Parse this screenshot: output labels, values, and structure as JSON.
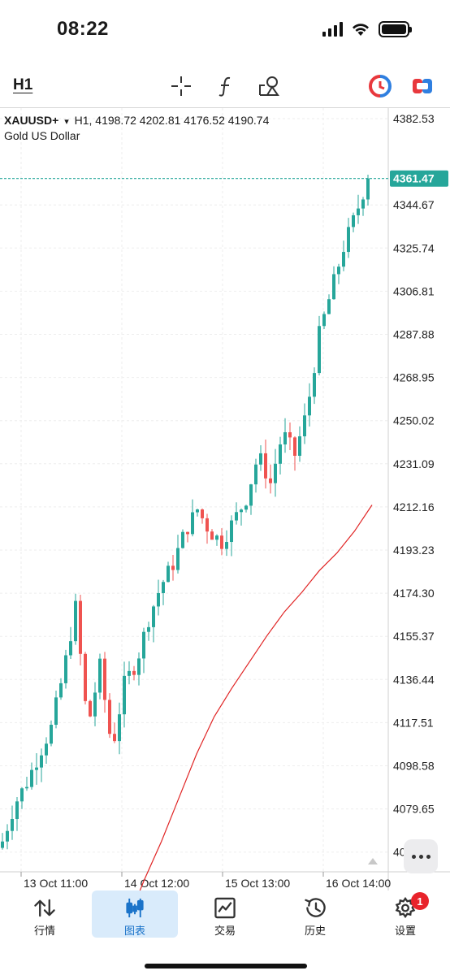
{
  "status_bar": {
    "time": "08:22"
  },
  "toolbar": {
    "timeframe": "H1",
    "icons": [
      "crosshair-icon",
      "indicator-icon",
      "objects-icon",
      "one-click-trading-icon",
      "account-switch-icon"
    ]
  },
  "chart": {
    "symbol": "XAUUSD+",
    "dropdown_glyph": "▾",
    "ohlc_line": "H1, 4198.72 4202.81 4176.52 4190.74",
    "description": "Gold US Dollar",
    "current_price": "4361.47",
    "price_axis": [
      "4382.53",
      "4344.67",
      "4325.74",
      "4306.81",
      "4287.88",
      "4268.95",
      "4250.02",
      "4231.09",
      "4212.16",
      "4193.23",
      "4174.30",
      "4155.37",
      "4136.44",
      "4117.51",
      "4098.58",
      "4079.65",
      "4060.72"
    ],
    "time_axis": [
      "13 Oct 11:00",
      "14 Oct 12:00",
      "15 Oct 13:00",
      "16 Oct 14:00"
    ],
    "colors": {
      "bull": "#26a69a",
      "bear": "#ef5350",
      "ma": "#e02424",
      "price_tag": "#26a69a",
      "grid": "#eeeeee"
    }
  },
  "chart_data": {
    "type": "candlestick",
    "timeframe": "H1",
    "x": [
      "13 Oct 11:00",
      "14 Oct 12:00",
      "15 Oct 13:00",
      "16 Oct 14:00"
    ],
    "close_trajectory": [
      4058,
      4075,
      4085,
      4098,
      4110,
      4135,
      4165,
      4110,
      4138,
      4100,
      4130,
      4140,
      4160,
      4175,
      4185,
      4200,
      4210,
      4200,
      4195,
      4205,
      4215,
      4235,
      4222,
      4245,
      4235,
      4255,
      4290,
      4310,
      4330,
      4345,
      4362
    ],
    "ma_trajectory": [
      4000,
      4020,
      4040,
      4058,
      4078,
      4098,
      4115,
      4128,
      4140,
      4152,
      4163,
      4172,
      4182,
      4190,
      4200,
      4212
    ],
    "last_price": 4361.47,
    "ylim": [
      4050,
      4390
    ]
  },
  "tabbar": {
    "tabs": [
      {
        "label": "行情",
        "icon": "quotes-icon"
      },
      {
        "label": "图表",
        "icon": "chart-icon"
      },
      {
        "label": "交易",
        "icon": "trade-icon"
      },
      {
        "label": "历史",
        "icon": "history-icon"
      },
      {
        "label": "设置",
        "icon": "settings-icon"
      }
    ],
    "settings_badge": "1"
  }
}
